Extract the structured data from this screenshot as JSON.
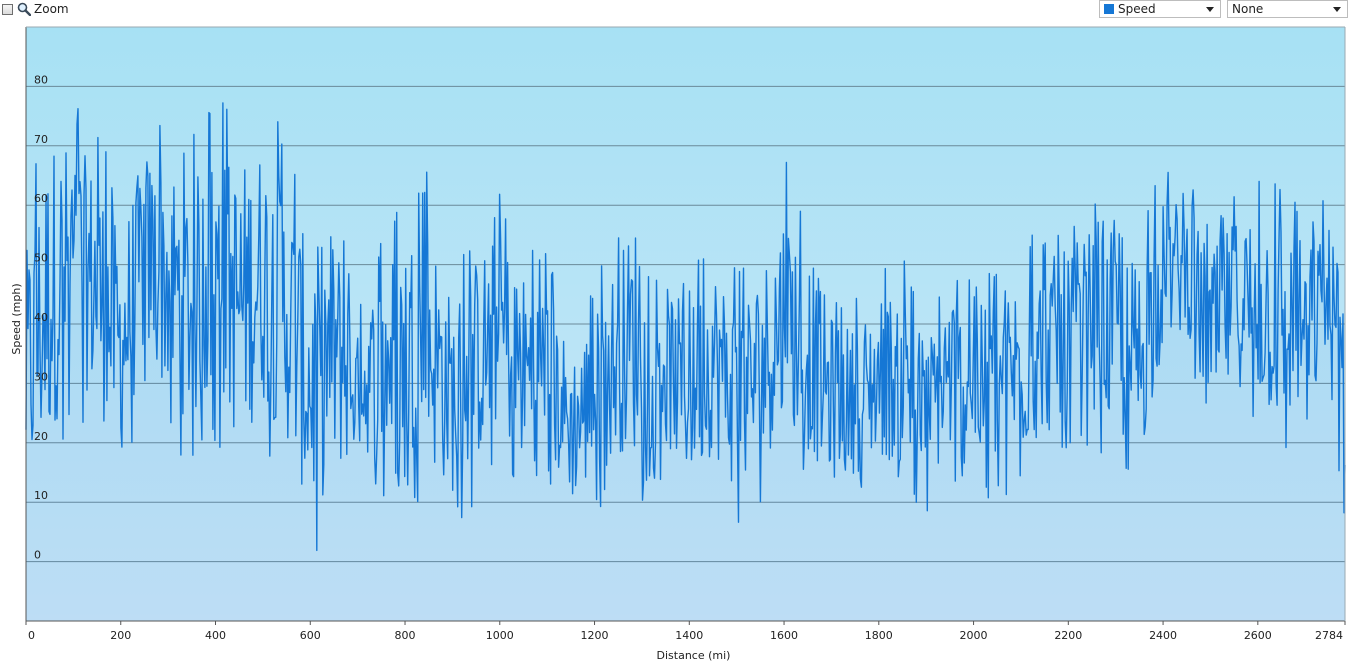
{
  "toolbar": {
    "zoom_label": "Zoom",
    "metric_select": {
      "value": "Speed",
      "color": "#1577d5"
    },
    "compare_select": {
      "value": "None"
    }
  },
  "chart_data": {
    "type": "area",
    "title": "",
    "xlabel": "Distance  (mi)",
    "ylabel": "Speed (mph)",
    "xlim": [
      0,
      2784
    ],
    "ylim": [
      -10,
      90
    ],
    "x_ticks": [
      0,
      200,
      400,
      600,
      800,
      1000,
      1200,
      1400,
      1600,
      1800,
      2000,
      2200,
      2400,
      2600,
      2784
    ],
    "y_ticks": [
      0,
      10,
      20,
      30,
      40,
      50,
      60,
      70,
      80
    ],
    "grid": "horizontal",
    "legend": "none",
    "colors": {
      "series": "#1577d5",
      "plot_top": "#a7e1f4",
      "plot_bottom": "#cbe7f8",
      "grid": "#6a8a99"
    },
    "series": [
      {
        "name": "Speed",
        "baseline": -10,
        "x": [
          0,
          50,
          100,
          150,
          200,
          250,
          300,
          350,
          400,
          450,
          500,
          550,
          600,
          650,
          700,
          750,
          800,
          850,
          900,
          950,
          1000,
          1050,
          1100,
          1150,
          1200,
          1250,
          1300,
          1350,
          1400,
          1450,
          1500,
          1550,
          1600,
          1650,
          1700,
          1750,
          1800,
          1850,
          1900,
          1950,
          2000,
          2050,
          2100,
          2150,
          2200,
          2250,
          2300,
          2350,
          2400,
          2450,
          2500,
          2550,
          2600,
          2650,
          2700,
          2750,
          2784
        ],
        "high": [
          60,
          81,
          78,
          74,
          62,
          76,
          74,
          72,
          78,
          76,
          79,
          72,
          60,
          66,
          42,
          56,
          62,
          66,
          50,
          58,
          62,
          55,
          52,
          40,
          47,
          58,
          68,
          52,
          48,
          57,
          50,
          55,
          68,
          60,
          47,
          44,
          50,
          52,
          42,
          52,
          47,
          52,
          54,
          57,
          58,
          62,
          58,
          58,
          66,
          65,
          58,
          63,
          67,
          66,
          59,
          62,
          60
        ],
        "low": [
          1,
          10,
          25,
          18,
          10,
          28,
          20,
          15,
          20,
          10,
          18,
          12,
          -1,
          5,
          15,
          10,
          12,
          8,
          5,
          10,
          15,
          10,
          12,
          5,
          8,
          12,
          10,
          14,
          8,
          12,
          5,
          10,
          15,
          12,
          8,
          10,
          12,
          10,
          8,
          12,
          10,
          10,
          12,
          15,
          18,
          20,
          15,
          10,
          30,
          35,
          15,
          25,
          20,
          15,
          20,
          25,
          5
        ]
      }
    ]
  }
}
